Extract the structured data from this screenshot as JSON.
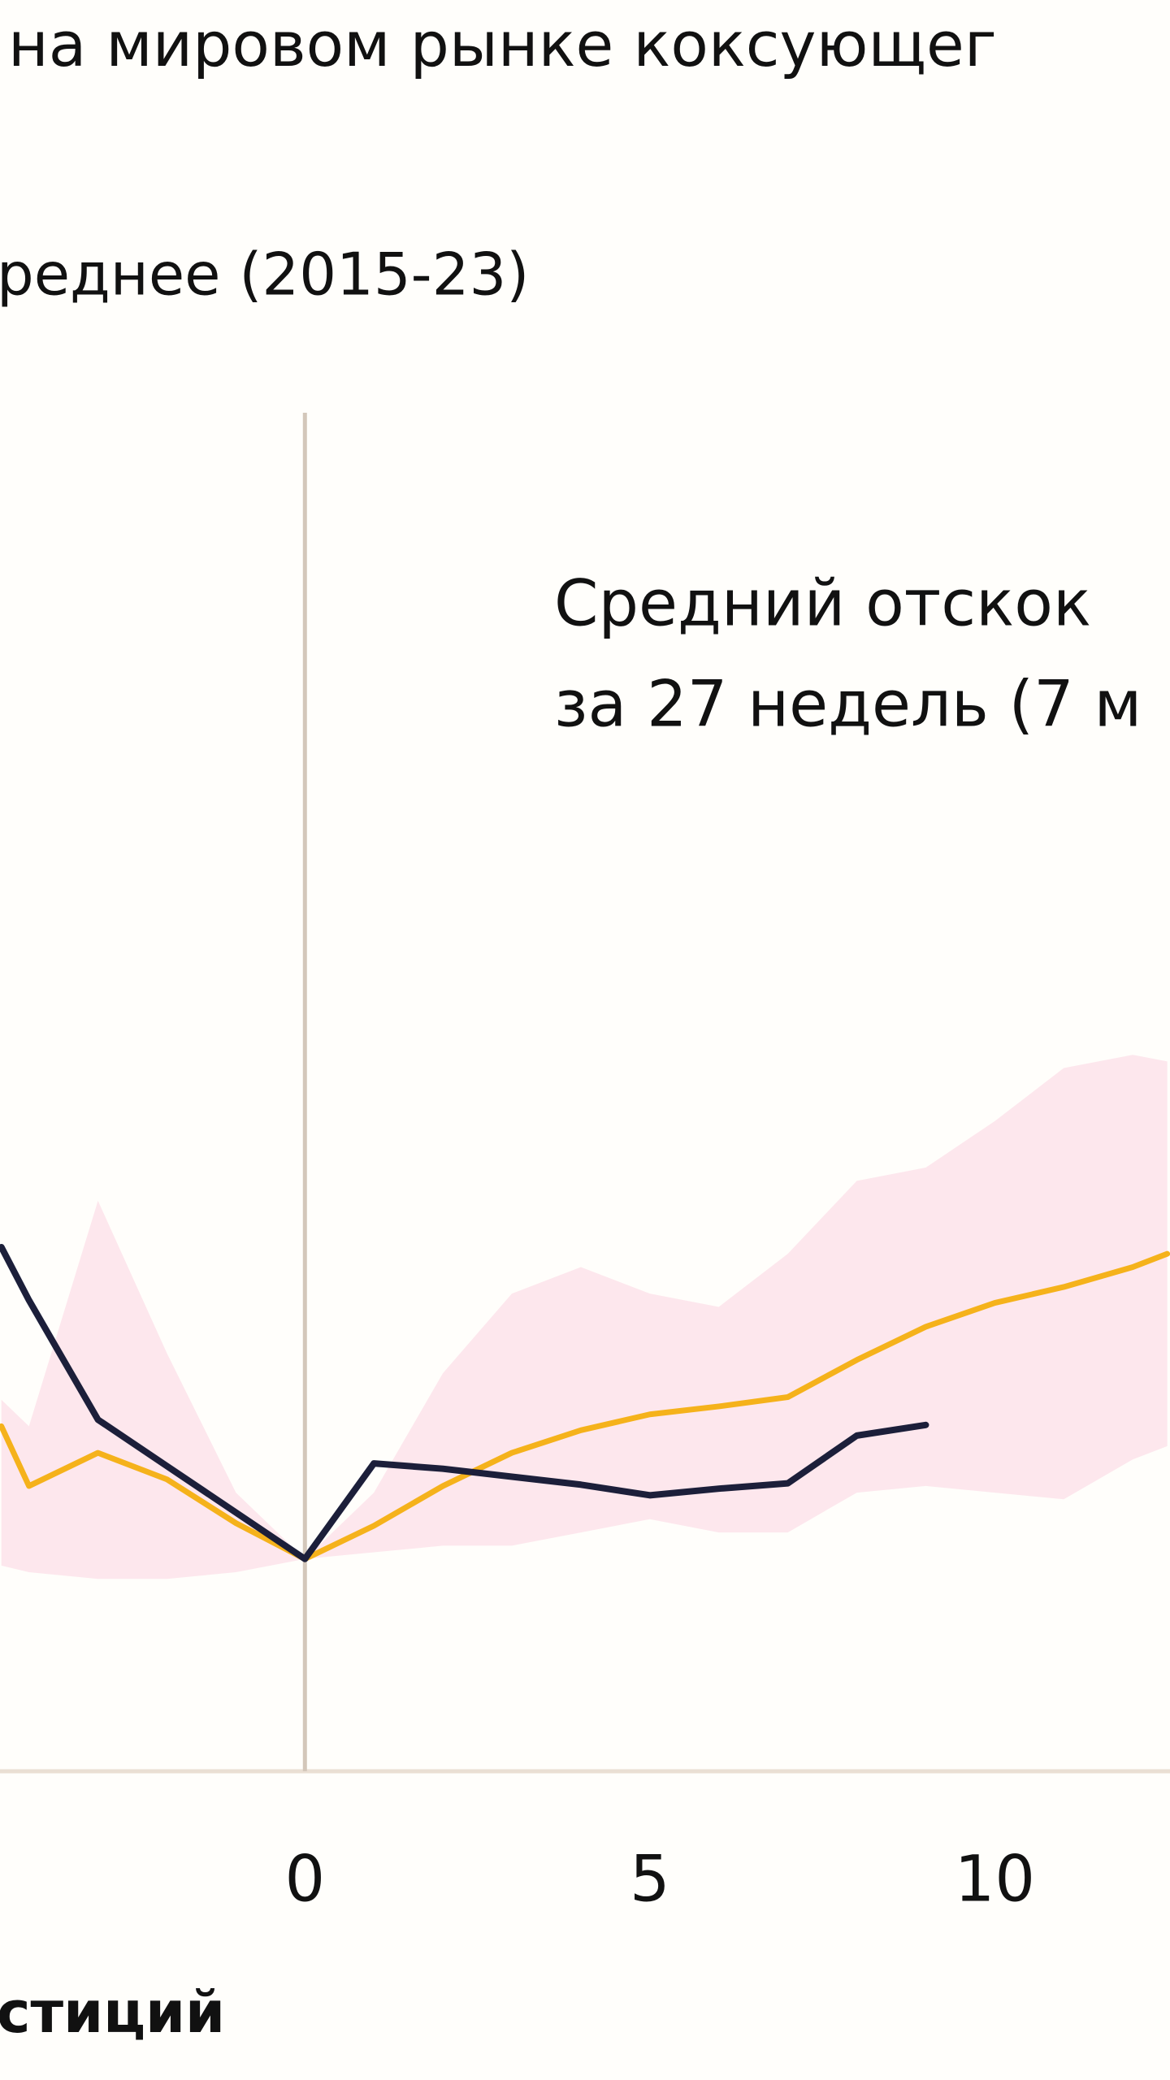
{
  "chart_data": {
    "type": "line",
    "title": "на мировом рынке коксующег",
    "subtitle": "реднее (2015-23)",
    "annotation": [
      "Средний отскок",
      "за 27 недель (7 м"
    ],
    "x_label": "стиций",
    "x": [
      -4.4,
      -4,
      -3,
      -2,
      -1,
      0,
      1,
      2,
      3,
      4,
      5,
      6,
      7,
      8,
      9,
      10,
      11,
      12,
      12.5
    ],
    "series": [
      {
        "name": null,
        "color": "#f5b21b",
        "values": [
          26,
          21.5,
          24,
          22,
          18.7,
          16,
          18.5,
          21.5,
          24,
          25.7,
          26.9,
          27.5,
          28.2,
          31,
          33.5,
          35.3,
          36.5,
          38,
          39
        ]
      },
      {
        "name": null,
        "color": "#1c1f3a",
        "values": [
          39.5,
          35.5,
          26.5,
          23,
          19.5,
          16,
          23.2,
          22.8,
          22.2,
          21.6,
          20.8,
          21.3,
          21.7,
          25.3,
          26.1,
          null,
          null,
          null,
          null
        ]
      }
    ],
    "band": {
      "color": "#fde3ea",
      "upper": [
        28,
        26,
        43,
        31.5,
        21,
        16,
        21,
        30,
        36,
        38,
        36,
        35,
        39,
        44.5,
        45.5,
        49,
        53,
        54,
        53.5
      ],
      "lower": [
        15.5,
        15,
        14.5,
        14.5,
        15,
        16,
        16.5,
        17,
        17,
        18,
        19,
        18,
        18,
        21,
        21.5,
        21,
        20.5,
        23.5,
        24.5
      ]
    },
    "vline_x": 0,
    "xlim": [
      -4.42,
      12.54
    ],
    "xticks": [
      0,
      5,
      10
    ],
    "ylim": [
      0,
      133.5
    ]
  }
}
